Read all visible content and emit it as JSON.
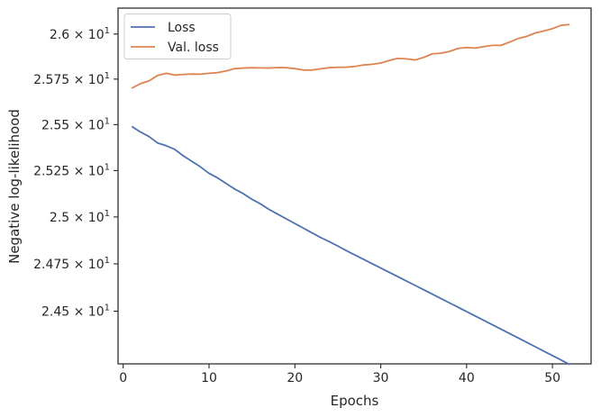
{
  "chart_data": {
    "type": "line",
    "xlabel": "Epochs",
    "ylabel": "Negative log-likelihood",
    "xlim": [
      -0.6,
      54.5
    ],
    "ylim": [
      24.225,
      26.145
    ],
    "y_scale": "log",
    "x_ticks": [
      0,
      10,
      20,
      30,
      40,
      50
    ],
    "x_tick_labels": [
      "0",
      "10",
      "20",
      "30",
      "40",
      "50"
    ],
    "y_ticks": [
      24.5,
      24.75,
      25.0,
      25.25,
      25.5,
      25.75,
      26.0
    ],
    "y_tick_labels": [
      {
        "mantissa": "2.45",
        "base": "10",
        "exp": "1"
      },
      {
        "mantissa": "2.475",
        "base": "10",
        "exp": "1"
      },
      {
        "mantissa": "2.5",
        "base": "10",
        "exp": "1"
      },
      {
        "mantissa": "2.525",
        "base": "10",
        "exp": "1"
      },
      {
        "mantissa": "2.55",
        "base": "10",
        "exp": "1"
      },
      {
        "mantissa": "2.575",
        "base": "10",
        "exp": "1"
      },
      {
        "mantissa": "2.6",
        "base": "10",
        "exp": "1"
      }
    ],
    "grid": false,
    "legend_position": "top-left",
    "x": [
      1,
      2,
      3,
      4,
      5,
      6,
      7,
      8,
      9,
      10,
      11,
      12,
      13,
      14,
      15,
      16,
      17,
      18,
      19,
      20,
      21,
      22,
      23,
      24,
      25,
      26,
      27,
      28,
      29,
      30,
      31,
      32,
      33,
      34,
      35,
      36,
      37,
      38,
      39,
      40,
      41,
      42,
      43,
      44,
      45,
      46,
      47,
      48,
      49,
      50,
      51,
      52
    ],
    "series": [
      {
        "name": "Loss",
        "color": "#4c72b0",
        "values": [
          25.49,
          25.46,
          25.435,
          25.4,
          25.385,
          25.365,
          25.33,
          25.3,
          25.27,
          25.235,
          25.21,
          25.18,
          25.15,
          25.125,
          25.095,
          25.07,
          25.04,
          25.015,
          24.99,
          24.965,
          24.94,
          24.915,
          24.89,
          24.868,
          24.845,
          24.82,
          24.797,
          24.774,
          24.751,
          24.728,
          24.705,
          24.682,
          24.659,
          24.636,
          24.613,
          24.59,
          24.567,
          24.544,
          24.521,
          24.498,
          24.475,
          24.452,
          24.429,
          24.406,
          24.383,
          24.36,
          24.337,
          24.314,
          24.291,
          24.268,
          24.245,
          24.222
        ]
      },
      {
        "name": "Val. loss",
        "color": "#dd8452",
        "values": [
          25.7,
          25.725,
          25.74,
          25.77,
          25.782,
          25.772,
          25.776,
          25.778,
          25.777,
          25.782,
          25.786,
          25.795,
          25.808,
          25.811,
          25.813,
          25.812,
          25.811,
          25.814,
          25.813,
          25.808,
          25.8,
          25.8,
          25.807,
          25.813,
          25.815,
          25.816,
          25.82,
          25.828,
          25.832,
          25.839,
          25.853,
          25.865,
          25.862,
          25.856,
          25.87,
          25.89,
          25.893,
          25.903,
          25.92,
          25.925,
          25.922,
          25.93,
          25.937,
          25.937,
          25.955,
          25.975,
          25.987,
          26.006,
          26.017,
          26.03,
          26.049,
          26.053
        ]
      }
    ]
  }
}
